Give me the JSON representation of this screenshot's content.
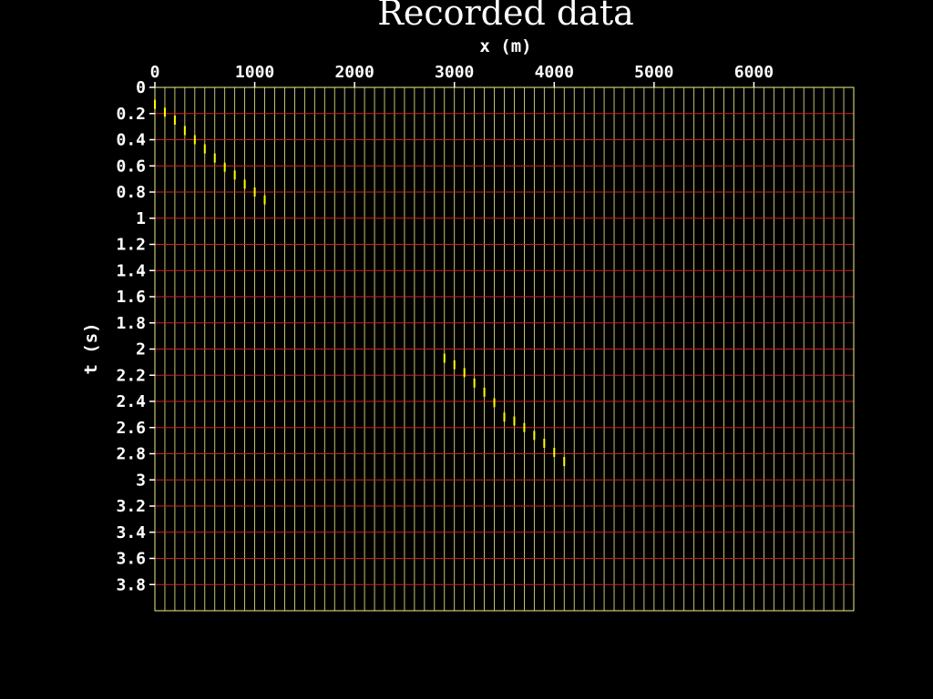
{
  "chart_data": {
    "type": "line",
    "title": "Recorded data",
    "xlabel": "x (m)",
    "ylabel": "t (s)",
    "xlim": [
      0,
      7000
    ],
    "ylim": [
      4.0,
      0
    ],
    "x_ticks": [
      "0",
      "1000",
      "2000",
      "3000",
      "4000",
      "5000",
      "6000"
    ],
    "y_ticks": [
      "0",
      "0.2",
      "0.4",
      "0.6",
      "0.8",
      "1",
      "1.2",
      "1.4",
      "1.6",
      "1.8",
      "2",
      "2.2",
      "2.4",
      "2.6",
      "2.8",
      "3",
      "3.2",
      "3.4",
      "3.6",
      "3.8"
    ],
    "trace_spacing_m": 100,
    "time_gridlines_s": 0.2,
    "grid": true,
    "colors": {
      "background": "#000000",
      "traces": "#f0f08c",
      "time_grid": "#d02020",
      "events": "#ffff00",
      "text": "#ffffff"
    },
    "series": [
      {
        "x": [
          0,
          100,
          200,
          300,
          400,
          500,
          600,
          700,
          800,
          900,
          1000,
          1100
        ],
        "y": [
          0.13,
          0.19,
          0.25,
          0.33,
          0.4,
          0.47,
          0.54,
          0.61,
          0.67,
          0.74,
          0.8,
          0.86
        ]
      },
      {
        "x": [
          2900,
          3000,
          3100,
          3200,
          3300,
          3400,
          3500,
          3600,
          3700,
          3800,
          3900,
          4000,
          4100
        ],
        "y": [
          2.07,
          2.12,
          2.18,
          2.26,
          2.33,
          2.41,
          2.52,
          2.55,
          2.6,
          2.66,
          2.72,
          2.79,
          2.86
        ]
      }
    ]
  }
}
